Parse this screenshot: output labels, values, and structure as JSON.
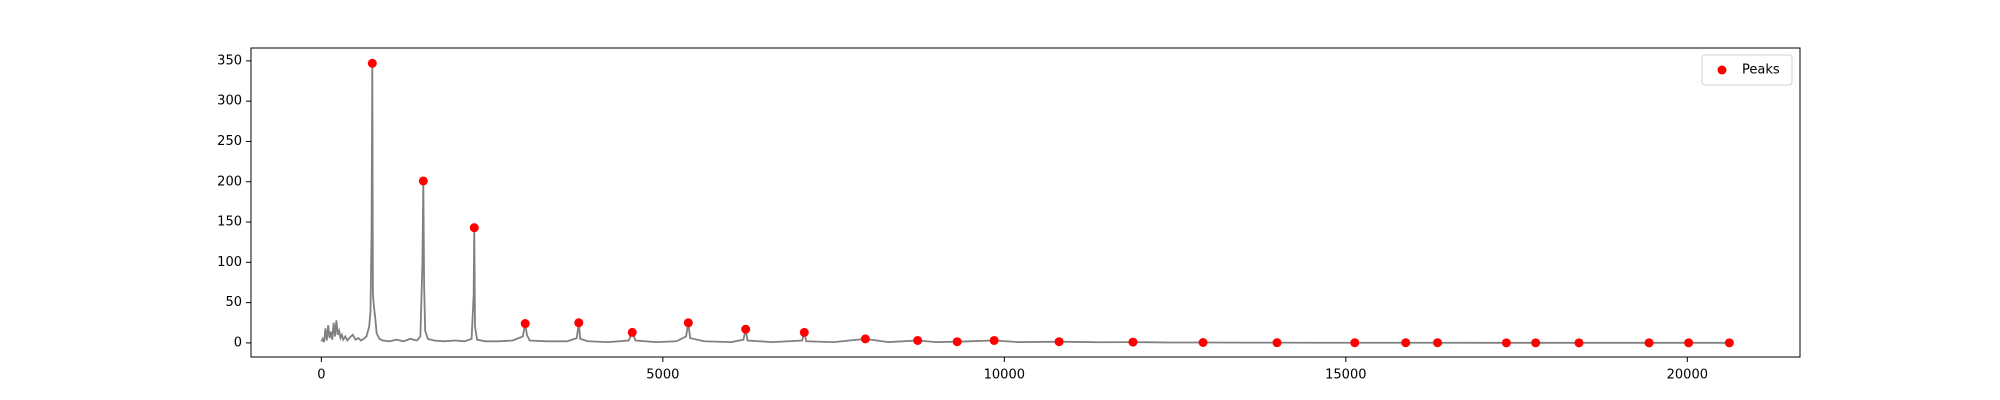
{
  "chart_data": {
    "type": "line",
    "xlim": [
      -1030,
      21650
    ],
    "ylim": [
      -17.5,
      366
    ],
    "xticks": [
      0,
      5000,
      10000,
      15000,
      20000
    ],
    "yticks": [
      0,
      50,
      100,
      150,
      200,
      250,
      300,
      350
    ],
    "legend": "upper right",
    "series": [
      {
        "color": "#808080",
        "x": [
          0,
          20,
          40,
          60,
          80,
          100,
          120,
          140,
          160,
          180,
          200,
          220,
          240,
          260,
          280,
          300,
          320,
          350,
          380,
          420,
          460,
          500,
          540,
          580,
          620,
          660,
          700,
          720,
          735,
          746,
          755,
          770,
          790,
          810,
          850,
          900,
          1000,
          1100,
          1200,
          1300,
          1400,
          1450,
          1480,
          1493,
          1505,
          1520,
          1560,
          1650,
          1800,
          1950,
          2100,
          2200,
          2230,
          2239,
          2250,
          2280,
          2400,
          2600,
          2800,
          2950,
          2985,
          3010,
          3050,
          3300,
          3600,
          3740,
          3769,
          3790,
          3900,
          4200,
          4500,
          4552,
          4600,
          4900,
          5200,
          5340,
          5373,
          5400,
          5600,
          6000,
          6180,
          6213,
          6240,
          6600,
          7040,
          7071,
          7100,
          7500,
          7966,
          8300,
          8731,
          9000,
          9310,
          9851,
          10200,
          10802,
          11400,
          11884,
          12400,
          12910,
          13500,
          13993,
          14500,
          15131,
          15877,
          16343,
          17351,
          17780,
          18414,
          19440,
          20019,
          20616
        ],
        "values": [
          2,
          5,
          1,
          18,
          3,
          22,
          6,
          14,
          4,
          25,
          8,
          28,
          10,
          15,
          6,
          10,
          4,
          8,
          3,
          7,
          10,
          4,
          6,
          3,
          5,
          8,
          20,
          40,
          135,
          347,
          60,
          45,
          30,
          12,
          5,
          3,
          2,
          4,
          2,
          5,
          3,
          8,
          100,
          201,
          70,
          15,
          5,
          3,
          2,
          3,
          2,
          5,
          60,
          143,
          20,
          4,
          2,
          2,
          3,
          8,
          24,
          10,
          3,
          2,
          2,
          6,
          25,
          5,
          2,
          1,
          3,
          13,
          3,
          1,
          2,
          8,
          25,
          6,
          2,
          1,
          4,
          17,
          3,
          1,
          3,
          13,
          2,
          1,
          5,
          1,
          3,
          1,
          1.5,
          3,
          1,
          1.5,
          0.8,
          1,
          0.5,
          0.5,
          0.3,
          0.3,
          0.2,
          0.2,
          0.2,
          0.2,
          0.1,
          0.1,
          0.1,
          0.1,
          0.1,
          0.1
        ]
      },
      {
        "name": "Peaks",
        "type": "scatter",
        "color": "#ff0000",
        "x": [
          746,
          1493,
          2239,
          2985,
          3769,
          4552,
          5373,
          6213,
          7071,
          7966,
          8731,
          9310,
          9851,
          10802,
          11884,
          12910,
          13993,
          15131,
          15877,
          16343,
          17351,
          17780,
          18414,
          19440,
          20019,
          20616
        ],
        "values": [
          347,
          201,
          143,
          24,
          25,
          13,
          25,
          17,
          13,
          5,
          3,
          1.5,
          3,
          1.5,
          1,
          0.5,
          0.3,
          0.2,
          0.2,
          0.2,
          0.1,
          0.1,
          0.1,
          0.1,
          0.1,
          0.1
        ]
      }
    ]
  }
}
